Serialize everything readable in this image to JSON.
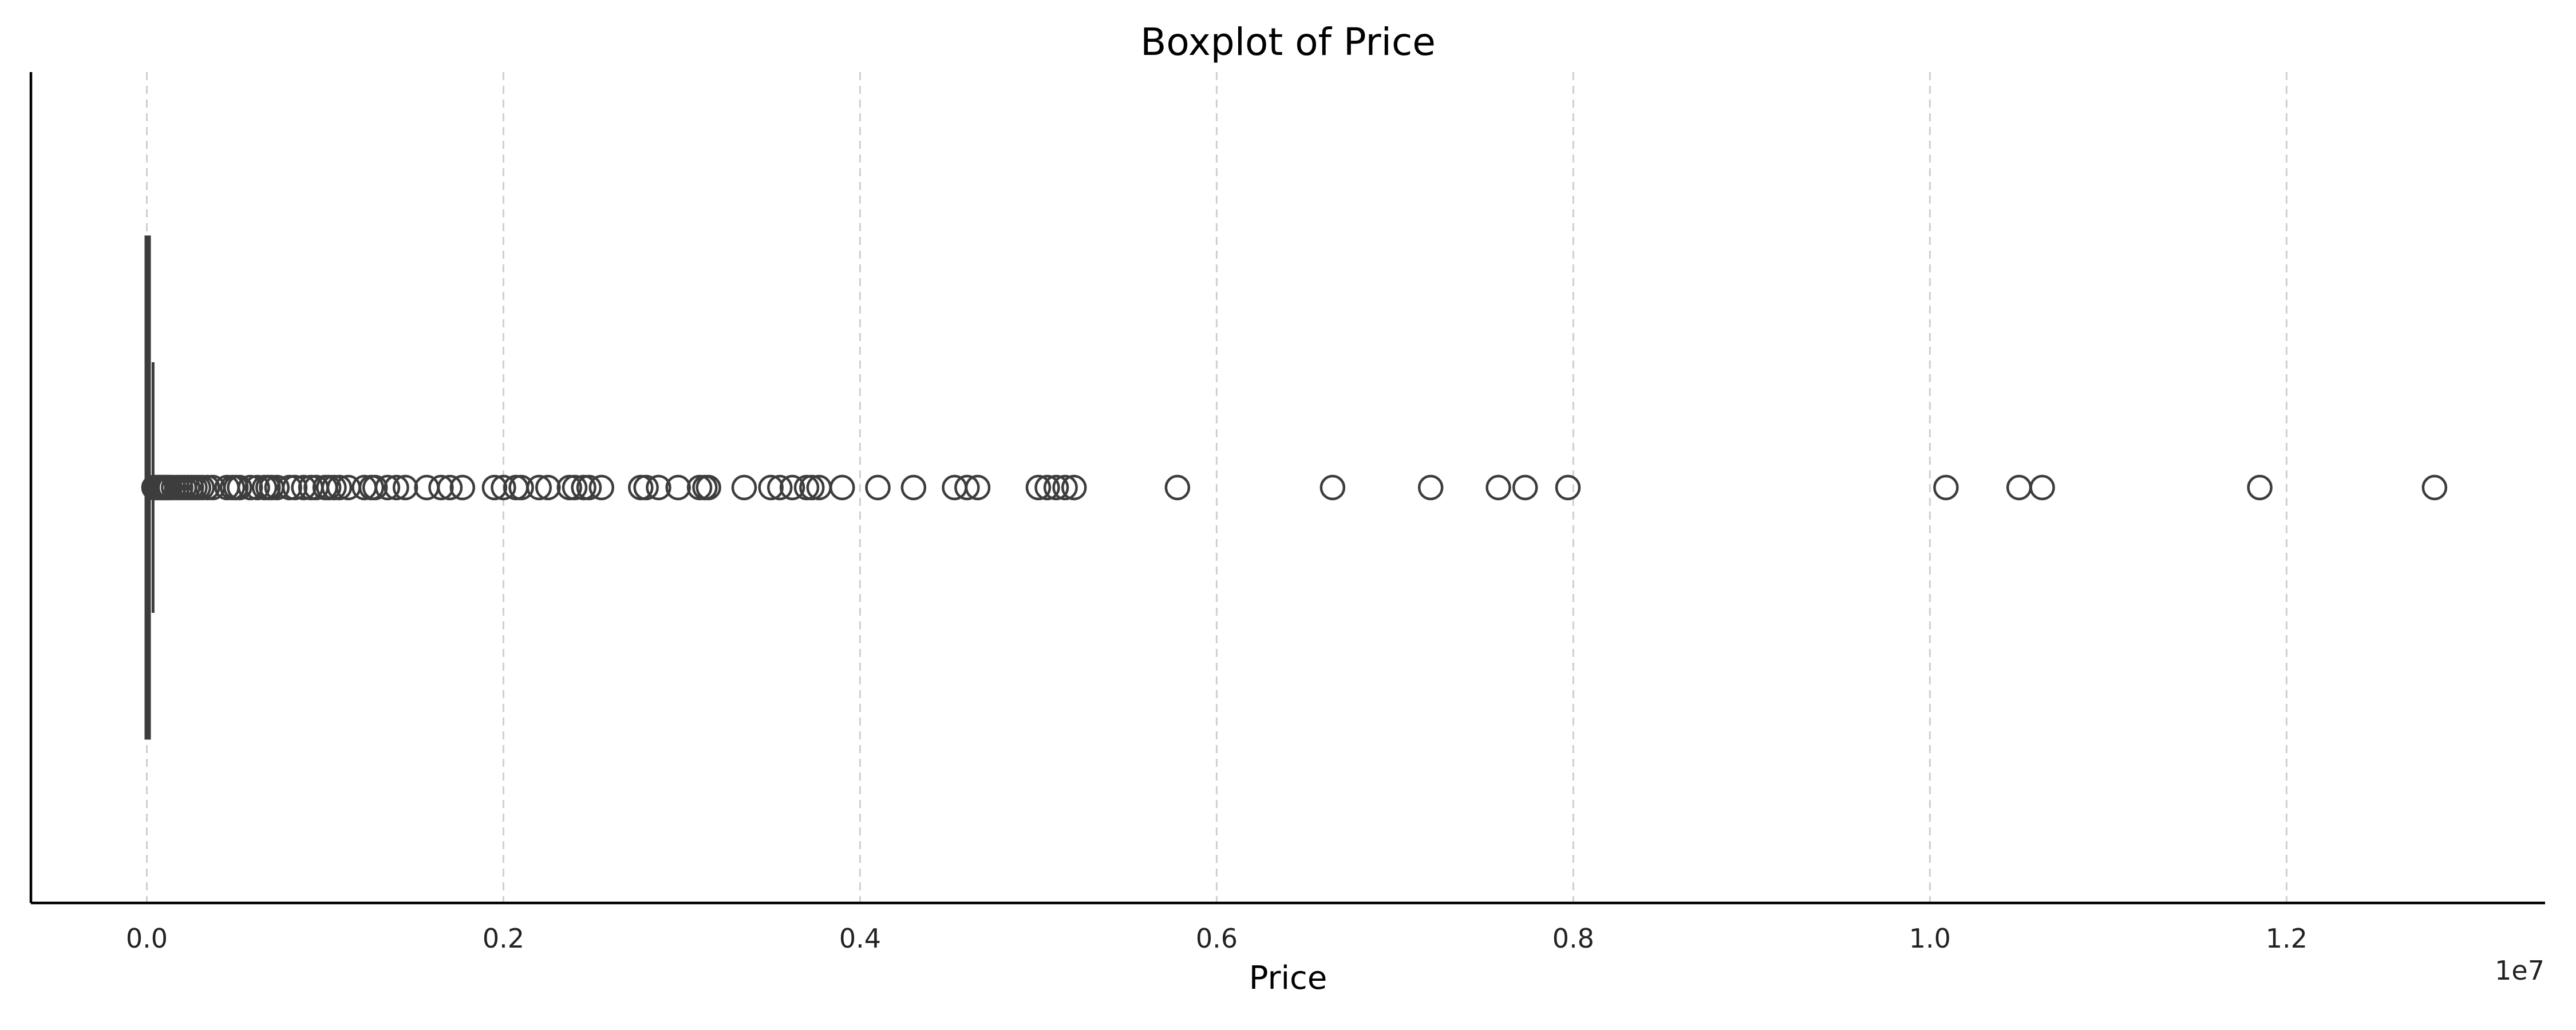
{
  "chart_data": {
    "type": "boxplot",
    "orientation": "horizontal",
    "title": "Boxplot of Price",
    "xlabel": "Price",
    "ylabel": "",
    "x_offset_label": "1e7",
    "xlim": [
      -0.065,
      1.345
    ],
    "xticks": [
      0.0,
      0.2,
      0.4,
      0.6,
      0.8,
      1.0,
      1.2
    ],
    "xtick_labels": [
      "0.0",
      "0.2",
      "0.4",
      "0.6",
      "0.8",
      "1.0",
      "1.2"
    ],
    "grid": "x-dashed",
    "box": {
      "whislo": 0.0,
      "q1": 0.0005,
      "med": 0.001,
      "q3": 0.002,
      "whishi": 0.0035
    },
    "outliers": [
      0.004,
      0.005,
      0.006,
      0.007,
      0.008,
      0.009,
      0.01,
      0.011,
      0.012,
      0.013,
      0.015,
      0.017,
      0.019,
      0.021,
      0.023,
      0.025,
      0.027,
      0.029,
      0.031,
      0.034,
      0.037,
      0.045,
      0.048,
      0.05,
      0.052,
      0.058,
      0.062,
      0.066,
      0.068,
      0.07,
      0.073,
      0.08,
      0.083,
      0.088,
      0.092,
      0.095,
      0.1,
      0.102,
      0.105,
      0.108,
      0.113,
      0.122,
      0.126,
      0.128,
      0.135,
      0.14,
      0.145,
      0.157,
      0.165,
      0.17,
      0.177,
      0.195,
      0.2,
      0.207,
      0.21,
      0.22,
      0.225,
      0.237,
      0.24,
      0.245,
      0.248,
      0.255,
      0.277,
      0.28,
      0.287,
      0.298,
      0.31,
      0.313,
      0.315,
      0.335,
      0.35,
      0.355,
      0.362,
      0.37,
      0.373,
      0.377,
      0.39,
      0.41,
      0.43,
      0.453,
      0.46,
      0.466,
      0.5,
      0.505,
      0.51,
      0.515,
      0.52,
      0.578,
      0.665,
      0.72,
      0.758,
      0.773,
      0.797,
      1.009,
      1.05,
      1.063,
      1.185,
      1.283
    ]
  }
}
